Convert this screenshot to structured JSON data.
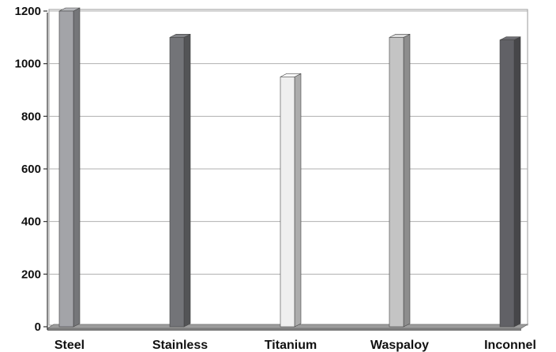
{
  "chart_data": {
    "type": "bar",
    "style": "3d-column",
    "categories": [
      "Steel",
      "Stainless",
      "Titanium",
      "Waspaloy",
      "Inconnel"
    ],
    "values": [
      1200,
      1100,
      950,
      1100,
      1090
    ],
    "bar_colors": [
      "#a3a4a8",
      "#737478",
      "#efefef",
      "#c4c4c4",
      "#616166"
    ],
    "ylim": [
      0,
      1200
    ],
    "yticks": [
      0,
      200,
      400,
      600,
      800,
      1000,
      1200
    ],
    "ytick_labels": [
      "0",
      "200",
      "400",
      "600",
      "800",
      "1000",
      "1200"
    ],
    "grid": true,
    "legend": "none"
  }
}
